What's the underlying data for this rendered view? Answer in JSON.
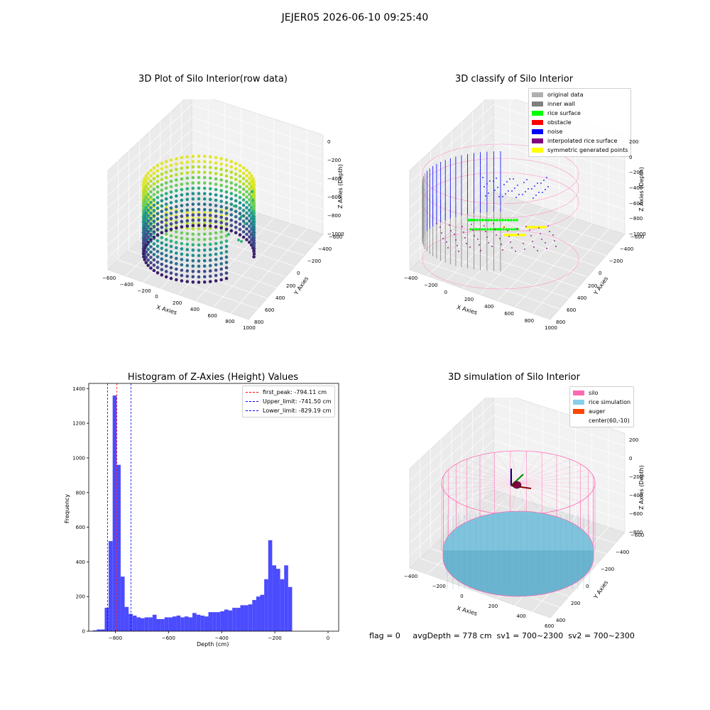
{
  "figure": {
    "suptitle": "JEJER05 2026-06-10 09:25:40",
    "footer": "flag = 0     avgDepth = 778 cm  sv1 = 700~2300  sv2 = 700~2300"
  },
  "panel_raw": {
    "title": "3D Plot of Silo Interior(row data)",
    "x_label": "X Axies",
    "y_label": "Y Axies",
    "z_label": "Z Axies (Depth)",
    "x_ticks": [
      "−600",
      "−400",
      "−200",
      "0",
      "200",
      "400",
      "600",
      "800",
      "1000"
    ],
    "y_ticks": [
      "−600",
      "−400",
      "−200",
      "0",
      "200",
      "400",
      "600",
      "800"
    ],
    "z_ticks": [
      "0",
      "−200",
      "−400",
      "−600",
      "−800",
      "−1000"
    ]
  },
  "panel_classify": {
    "title": "3D classify of Silo Interior",
    "x_label": "X Axies",
    "y_label": "Y Axies",
    "z_label": "Z Axies (Depth)",
    "x_ticks": [
      "−400",
      "−200",
      "0",
      "200",
      "400",
      "600",
      "800",
      "1000"
    ],
    "y_ticks": [
      "−600",
      "−400",
      "−200",
      "0",
      "200",
      "400",
      "600",
      "800"
    ],
    "z_ticks": [
      "200",
      "0",
      "−200",
      "−400",
      "−600",
      "−800",
      "−1000"
    ],
    "legend": [
      {
        "label": "original data",
        "color": "#b0b0b0"
      },
      {
        "label": "inner wall",
        "color": "#808080"
      },
      {
        "label": "rice surface",
        "color": "#00ff00"
      },
      {
        "label": "obstacle",
        "color": "#ff0000"
      },
      {
        "label": "noise",
        "color": "#0000ff"
      },
      {
        "label": "interpolated rice surface",
        "color": "#800080"
      },
      {
        "label": "symmetric generated points",
        "color": "#ffff00"
      }
    ]
  },
  "panel_sim": {
    "title": "3D simulation of Silo Interior",
    "x_label": "X Axies",
    "y_label": "Y Axies",
    "z_label": "Z Axies (Depth)",
    "x_ticks": [
      "−400",
      "−200",
      "0",
      "200",
      "400",
      "600"
    ],
    "y_ticks": [
      "−600",
      "−400",
      "−200",
      "0",
      "200",
      "400"
    ],
    "z_ticks": [
      "200",
      "0",
      "−200",
      "−400",
      "−600",
      "−800"
    ],
    "legend": [
      {
        "label": "silo",
        "color": "#ff69b4"
      },
      {
        "label": "rice simulation",
        "color": "#87ceeb"
      },
      {
        "label": "auger",
        "color": "#ff4500"
      },
      {
        "label": "center(60,-10)",
        "color": "#ffffff"
      }
    ]
  },
  "chart_data": {
    "type": "bar",
    "title": "Histogram of Z-Axies (Height) Values",
    "xlabel": "Depth (cm)",
    "ylabel": "Frequency",
    "xlim": [
      -900,
      40
    ],
    "ylim": [
      0,
      1430
    ],
    "x_ticks": [
      -800,
      -600,
      -400,
      -200,
      0
    ],
    "x_tick_labels": [
      "−800",
      "−600",
      "−400",
      "−200",
      "0"
    ],
    "y_ticks": [
      0,
      200,
      400,
      600,
      800,
      1000,
      1200,
      1400
    ],
    "bin_start": -885,
    "bin_width": 15,
    "values": [
      5,
      10,
      10,
      135,
      520,
      1360,
      960,
      315,
      140,
      100,
      90,
      80,
      75,
      80,
      80,
      95,
      70,
      70,
      80,
      80,
      85,
      90,
      80,
      85,
      80,
      105,
      95,
      90,
      85,
      110,
      110,
      110,
      115,
      125,
      120,
      135,
      135,
      150,
      150,
      155,
      180,
      200,
      210,
      300,
      525,
      380,
      360,
      300,
      380,
      255
    ],
    "bar_color": "#4b4bff",
    "lines": [
      {
        "label": "first_peak: -794.11 cm",
        "x": -794.11,
        "color": "#ff0000"
      },
      {
        "label": "Upper_limit: -741.50 cm",
        "x": -741.5,
        "color": "#0000ff"
      },
      {
        "label": "Lower_limit: -829.19 cm",
        "x": -829.19,
        "color": "#0000ff"
      }
    ],
    "legend_position": "top-right"
  }
}
